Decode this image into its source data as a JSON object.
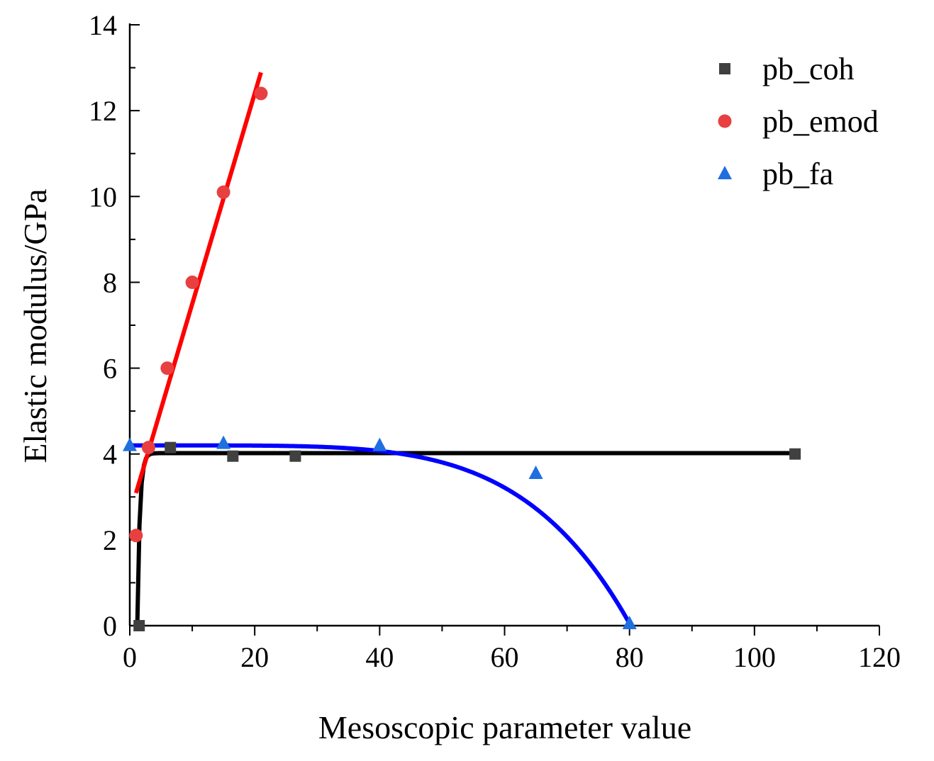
{
  "chart_data": {
    "type": "scatter",
    "title": "",
    "xlabel": "Mesoscopic parameter value",
    "ylabel": "Elastic modulus/GPa",
    "xlim": [
      0,
      120
    ],
    "ylim": [
      0,
      14
    ],
    "x_ticks": [
      0,
      20,
      40,
      60,
      80,
      100,
      120
    ],
    "x_tick_labels": [
      "0",
      "20",
      "40",
      "60",
      "80",
      "100",
      "120"
    ],
    "y_ticks": [
      0,
      2,
      4,
      6,
      8,
      10,
      12,
      14
    ],
    "y_tick_labels": [
      "0",
      "2",
      "4",
      "6",
      "8",
      "10",
      "12",
      "14"
    ],
    "grid": false,
    "legend_position": "top-right",
    "series": [
      {
        "name": "pb_coh",
        "marker": "square",
        "color": "#404040",
        "line_color": "#000000",
        "x": [
          1.5,
          6.5,
          16.5,
          26.5,
          106.5
        ],
        "y": [
          0.0,
          4.15,
          3.95,
          3.95,
          4.0
        ],
        "fit": {
          "kind": "saturation",
          "asymptote": 4.02,
          "x0": 1.2,
          "rate": 2.5,
          "x_range": [
            1.2,
            106.5
          ]
        }
      },
      {
        "name": "pb_emod",
        "marker": "circle",
        "color": "#e84040",
        "line_color": "#ff0000",
        "x": [
          1,
          3,
          6,
          10,
          15,
          21
        ],
        "y": [
          2.1,
          4.15,
          6.0,
          8.0,
          10.1,
          12.4
        ],
        "fit": {
          "kind": "linear",
          "slope": 0.49,
          "intercept": 2.6,
          "x_range": [
            1,
            21
          ]
        }
      },
      {
        "name": "pb_fa",
        "marker": "triangle",
        "color": "#1f6fe0",
        "line_color": "#0000ff",
        "x": [
          0,
          15,
          40,
          65,
          80
        ],
        "y": [
          4.2,
          4.25,
          4.2,
          3.55,
          0.05
        ],
        "fit": {
          "kind": "decay",
          "base": 4.2,
          "scale": 4.15,
          "x_end": 80,
          "power": 5,
          "x_range": [
            0,
            80
          ]
        }
      }
    ]
  }
}
